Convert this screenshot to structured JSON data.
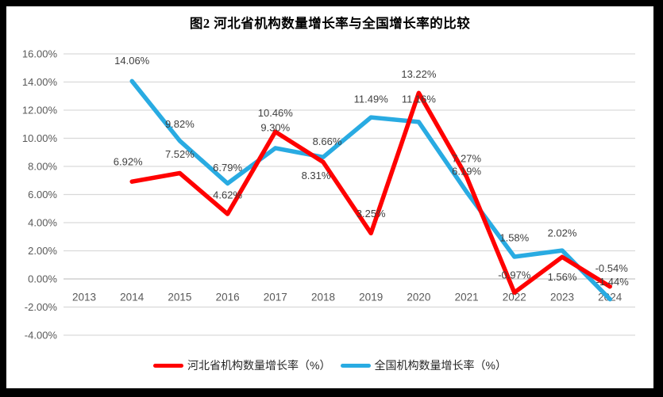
{
  "frame": {
    "border_color": "#000000",
    "chart_background": "#ffffff"
  },
  "chart_data": {
    "type": "line",
    "title": "图2 河北省机构数量增长率与全国增长率的比较",
    "x_categories": [
      "2013",
      "2014",
      "2015",
      "2016",
      "2017",
      "2018",
      "2019",
      "2020",
      "2021",
      "2022",
      "2023",
      "2024"
    ],
    "y_axis": {
      "ticks": [
        "16.00%",
        "14.00%",
        "12.00%",
        "10.00%",
        "8.00%",
        "6.00%",
        "4.00%",
        "2.00%",
        "0.00%",
        "-2.00%",
        "-4.00%"
      ],
      "max": 16,
      "min": -4,
      "step": 2
    },
    "grid": true,
    "legend_position": "bottom",
    "colors": {
      "gridline": "#d9d9d9",
      "zero_axis_line": "#c6c6c6",
      "axis_text": "#595959",
      "data_label_text": "#3f3f3f"
    },
    "series": [
      {
        "name": "河北省机构数量增长率（%）",
        "color": "#ff0000",
        "x": [
          "2014",
          "2015",
          "2016",
          "2017",
          "2018",
          "2019",
          "2020",
          "2021",
          "2022",
          "2023",
          "2024"
        ],
        "values": [
          6.92,
          7.52,
          4.62,
          10.46,
          8.31,
          3.25,
          13.22,
          7.27,
          -0.97,
          1.56,
          -0.54
        ],
        "data_labels": [
          "6.92%",
          "7.52%",
          "4.62%",
          "10.46%",
          "8.31%",
          "3.25%",
          "13.22%",
          "7.27%",
          "-0.97%",
          "1.56%",
          "-0.54%"
        ],
        "label_dx": [
          -5,
          0,
          0,
          0,
          -9,
          0,
          0,
          0,
          0,
          0,
          2
        ],
        "label_dy": [
          -25,
          -24,
          -24,
          -24,
          17,
          -25,
          -24,
          -23,
          -22,
          25,
          -23
        ]
      },
      {
        "name": "全国机构数量增长率（%）",
        "color": "#29abe2",
        "x": [
          "2014",
          "2015",
          "2016",
          "2017",
          "2018",
          "2019",
          "2020",
          "2021",
          "2022",
          "2023",
          "2024"
        ],
        "values": [
          14.06,
          9.82,
          6.79,
          9.3,
          8.66,
          11.49,
          11.16,
          6.19,
          1.58,
          2.02,
          -1.44
        ],
        "data_labels": [
          "14.06%",
          "9.82%",
          "6.79%",
          "9.30%",
          "8.66%",
          "11.49%",
          "11.16%",
          "6.19%",
          "1.58%",
          "2.02%",
          "-1.44%"
        ],
        "label_dx": [
          0,
          0,
          0,
          0,
          5,
          0,
          0,
          0,
          0,
          0,
          3
        ],
        "label_dy": [
          -26,
          -21,
          -20,
          -26,
          -20,
          -23,
          -29,
          -26,
          -24,
          -22,
          -22
        ]
      }
    ]
  }
}
